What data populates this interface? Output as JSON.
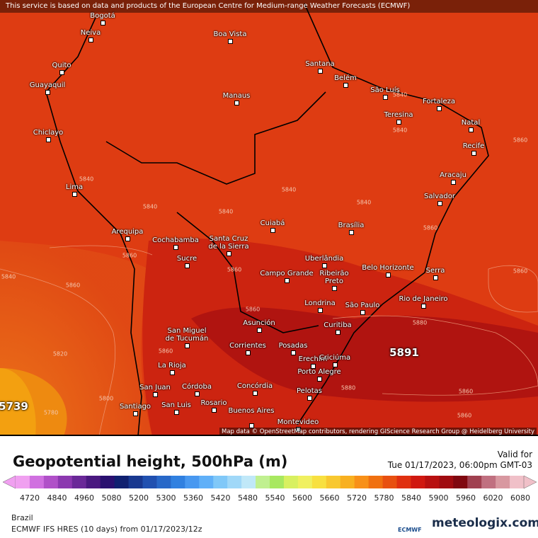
{
  "notice": "This service is based on data and products of the European Centre for Medium-range Weather Forecasts (ECMWF)",
  "attribution": "Map data © OpenStreetMap contributors, rendering GIScience Research Group @ Heidelberg University",
  "cities": [
    "Bogotá",
    "Neiva",
    "Boa Vista",
    "Quito",
    "Santana",
    "Belém",
    "Guayaquil",
    "São Luís",
    "Manaus",
    "Fortaleza",
    "Teresina",
    "Natal",
    "Chiclayo",
    "Recife",
    "Aracaju",
    "Lima",
    "Salvador",
    "Cuiabá",
    "Brasília",
    "Arequipa",
    "Cochabamba",
    "Santa Cruz de la Sierra",
    "Uberlândia",
    "Sucre",
    "Belo Horizonte",
    "Serra",
    "Campo Grande",
    "Ribeirão Preto",
    "Londrina",
    "Rio de Janeiro",
    "São Paulo",
    "Asunción",
    "Curitiba",
    "San Miguel de Tucumán",
    "Corrientes",
    "Posadas",
    "Erechim",
    "Criciúma",
    "La Rioja",
    "Porto Alegre",
    "San Juan",
    "Córdoba",
    "Concórdia",
    "Pelotas",
    "Santiago",
    "San Luis",
    "Rosario",
    "Buenos Aires",
    "Montevideo"
  ],
  "contour_labels": [
    5840,
    5840,
    5840,
    5840,
    5840,
    5840,
    5840,
    5860,
    5860,
    5860,
    5840,
    5860,
    5820,
    5800,
    5780,
    5860,
    5860,
    5860,
    5860,
    5880,
    5880,
    5860,
    5860
  ],
  "extremes": [
    5891,
    5739
  ],
  "legend": {
    "title": "Geopotential height, 500hPa (m)",
    "ticks": [
      4720,
      4840,
      4960,
      5080,
      5200,
      5300,
      5360,
      5420,
      5480,
      5540,
      5600,
      5660,
      5720,
      5780,
      5840,
      5900,
      5960,
      6020,
      6080
    ],
    "colors": [
      "#f0a0f0",
      "#d070e0",
      "#b050c8",
      "#8c38b0",
      "#6a2898",
      "#4a1880",
      "#2a1070",
      "#102070",
      "#183890",
      "#2050b0",
      "#2868c8",
      "#3080e0",
      "#4898f0",
      "#60b0f8",
      "#80c8f8",
      "#a0d8f8",
      "#c0e8f8",
      "#c0f090",
      "#a8e860",
      "#d8f060",
      "#f0f060",
      "#f8e040",
      "#f8c830",
      "#f8b020",
      "#f89018",
      "#f07010",
      "#e85010",
      "#e03010",
      "#d01810",
      "#b81010",
      "#a00c10",
      "#800810",
      "#a04050",
      "#c07080",
      "#d898a0",
      "#f0c0c8"
    ]
  },
  "valid": {
    "label": "Valid for",
    "time": "Tue 01/17/2023, 06:00pm GMT-03"
  },
  "footer": {
    "region": "Brazil",
    "model": "ECMWF IFS HRES (10 days) from 01/17/2023/12z",
    "ecmwf": "ECMWF",
    "brand": "meteologix.com"
  }
}
